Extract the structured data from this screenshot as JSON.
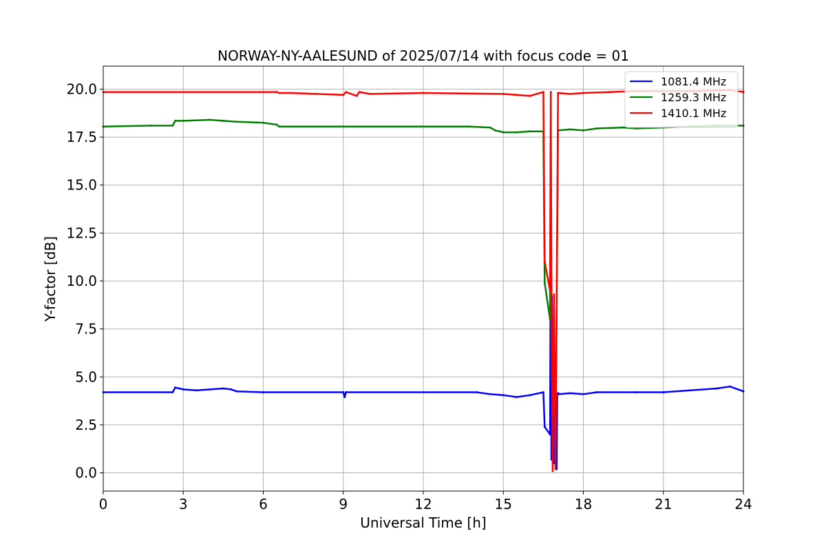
{
  "chart_data": {
    "type": "line",
    "title": "NORWAY-NY-AALESUND of 2025/07/14 with focus code = 01",
    "xlabel": "Universal Time [h]",
    "ylabel": "Y-factor [dB]",
    "xlim": [
      0,
      24
    ],
    "ylim": [
      -0.95,
      21.2
    ],
    "xticks": [
      0,
      3,
      6,
      9,
      12,
      15,
      18,
      21,
      24
    ],
    "xtick_labels": [
      "0",
      "3",
      "6",
      "9",
      "12",
      "15",
      "18",
      "21",
      "24"
    ],
    "yticks": [
      0.0,
      2.5,
      5.0,
      7.5,
      10.0,
      12.5,
      15.0,
      17.5,
      20.0
    ],
    "ytick_labels": [
      "0.0",
      "2.5",
      "5.0",
      "7.5",
      "10.0",
      "12.5",
      "15.0",
      "17.5",
      "20.0"
    ],
    "grid": true,
    "legend_position": "top-right",
    "series": [
      {
        "name": "1081.4 MHz",
        "color": "#0000ff",
        "x": [
          0,
          2.6,
          2.7,
          3.0,
          3.5,
          4.0,
          4.5,
          4.8,
          5.0,
          6.0,
          9.0,
          9.05,
          9.1,
          14.0,
          14.5,
          15.0,
          15.5,
          16.0,
          16.5,
          16.55,
          16.75,
          16.78,
          16.8,
          16.82,
          16.85,
          16.88,
          16.9,
          16.95,
          17.0,
          17.02,
          17.05,
          17.1,
          17.5,
          18.0,
          18.5,
          20.0,
          21.0,
          22.0,
          23.0,
          23.5,
          24.0
        ],
        "y": [
          4.2,
          4.2,
          4.45,
          4.35,
          4.3,
          4.35,
          4.4,
          4.35,
          4.25,
          4.2,
          4.2,
          3.95,
          4.2,
          4.2,
          4.1,
          4.05,
          3.95,
          4.05,
          4.2,
          2.4,
          2.0,
          13.3,
          0.7,
          9.2,
          0.6,
          3.4,
          0.5,
          5.4,
          0.2,
          4.1,
          4.15,
          4.1,
          4.15,
          4.1,
          4.2,
          4.2,
          4.2,
          4.3,
          4.4,
          4.5,
          4.25
        ]
      },
      {
        "name": "1259.3 MHz",
        "color": "#008000",
        "x": [
          0,
          1.8,
          2.6,
          2.7,
          3.0,
          4.0,
          4.5,
          5.0,
          6.0,
          6.5,
          6.6,
          9.0,
          13.7,
          14.5,
          14.7,
          15.0,
          15.5,
          16.0,
          16.5,
          16.55,
          16.75,
          16.78,
          16.8,
          16.85,
          16.9,
          16.95,
          17.0,
          17.05,
          17.5,
          18.0,
          18.5,
          19.5,
          20.0,
          21.0,
          22.0,
          23.0,
          24.0
        ],
        "y": [
          18.05,
          18.1,
          18.1,
          18.35,
          18.35,
          18.4,
          18.35,
          18.3,
          18.25,
          18.15,
          18.05,
          18.05,
          18.05,
          18.0,
          17.85,
          17.75,
          17.75,
          17.8,
          17.8,
          9.9,
          8.0,
          17.9,
          9.0,
          1.0,
          8.5,
          0.3,
          8.9,
          17.85,
          17.9,
          17.85,
          17.95,
          18.0,
          17.95,
          18.0,
          18.05,
          18.1,
          18.1
        ]
      },
      {
        "name": "1410.1 MHz",
        "color": "#ff0000",
        "x": [
          0,
          6.5,
          6.6,
          7.0,
          8.0,
          9.0,
          9.1,
          9.5,
          9.6,
          10.0,
          12.0,
          15.0,
          15.5,
          16.0,
          16.5,
          16.55,
          16.75,
          16.78,
          16.8,
          16.85,
          16.9,
          16.95,
          17.0,
          17.05,
          17.5,
          18.0,
          19.0,
          20.0,
          22.0,
          23.5,
          24.0
        ],
        "y": [
          19.85,
          19.85,
          19.8,
          19.8,
          19.75,
          19.7,
          19.85,
          19.65,
          19.85,
          19.75,
          19.8,
          19.75,
          19.7,
          19.65,
          19.85,
          11.0,
          9.5,
          19.85,
          10.8,
          0.1,
          9.3,
          0.2,
          9.1,
          19.8,
          19.75,
          19.8,
          19.85,
          19.9,
          19.9,
          19.95,
          19.85
        ]
      }
    ]
  }
}
